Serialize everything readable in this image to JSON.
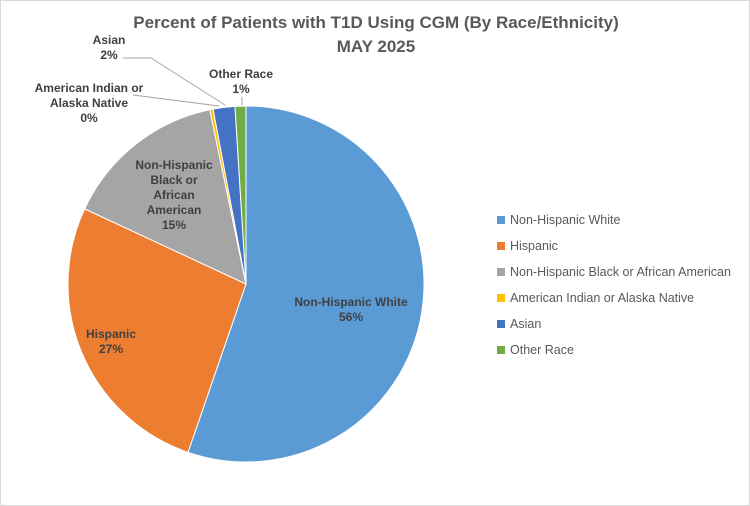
{
  "chart_data": {
    "type": "pie",
    "title": "Percent of Patients with T1D Using CGM  (By Race/Ethnicity)",
    "subtitle": "MAY 2025",
    "start_angle": "12 o'clock, clockwise",
    "legend_position": "right",
    "slices": [
      {
        "name": "Non-Hispanic White",
        "value": 56,
        "label": "56%",
        "label_name": "Non-Hispanic White",
        "color": "#5B9BD5"
      },
      {
        "name": "Hispanic",
        "value": 27,
        "label": "27%",
        "label_name": "Hispanic",
        "color": "#ED7D31"
      },
      {
        "name": "Non-Hispanic Black or African American",
        "value": 15,
        "label": "15%",
        "label_name": "Non-Hispanic Black or African American",
        "color": "#A5A5A5"
      },
      {
        "name": "American Indian or Alaska Native",
        "value": 0.3,
        "label": "0%",
        "label_name": "American Indian or Alaska Native",
        "color": "#FFC000"
      },
      {
        "name": "Asian",
        "value": 2,
        "label": "2%",
        "label_name": "Asian",
        "color": "#4472C4"
      },
      {
        "name": "Other Race",
        "value": 1,
        "label": "1%",
        "label_name": "Other Race",
        "color": "#70AD47"
      }
    ]
  }
}
